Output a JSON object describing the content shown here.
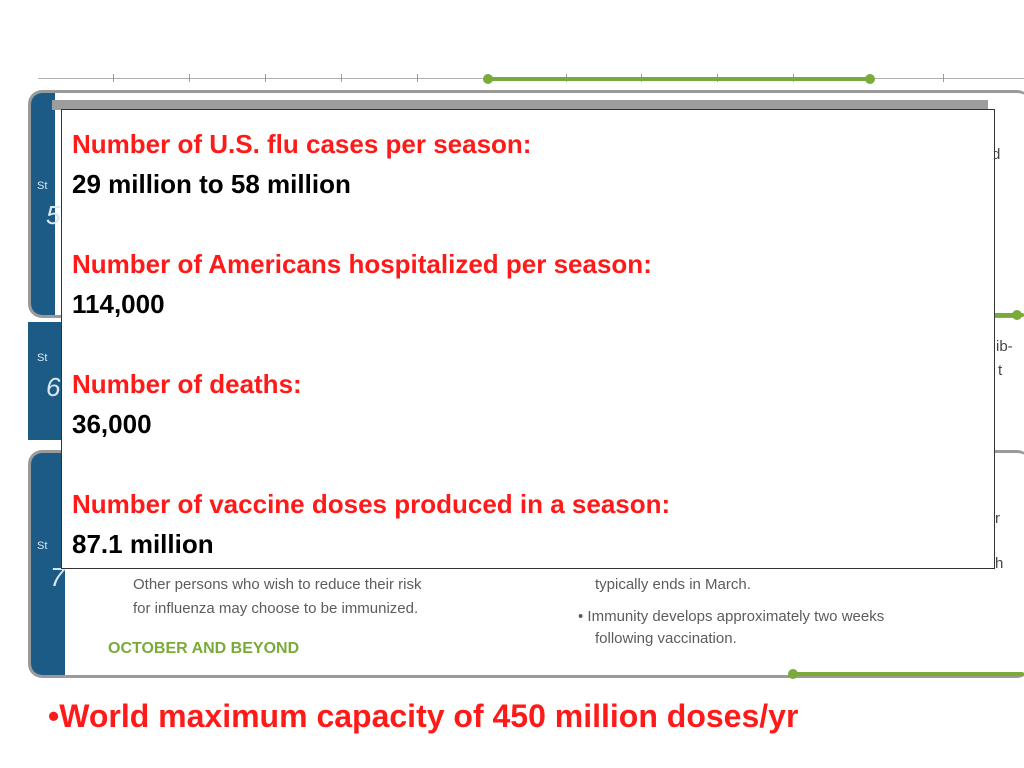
{
  "stats": [
    {
      "label": "Number of U.S. flu cases per season:",
      "value": "29 million to 58 million"
    },
    {
      "label": "Number of Americans hospitalized per season:",
      "value": "114,000"
    },
    {
      "label": "Number of deaths:",
      "value": "36,000"
    },
    {
      "label": "Number of vaccine doses produced in a season:",
      "value": "87.1 million"
    }
  ],
  "bullet": "•World maximum capacity of 450 million doses/yr",
  "background": {
    "step_label": "St",
    "panel1_number": "5",
    "panel2_number": "6",
    "panel3_number": "7",
    "edge_text_1": "d",
    "edge_text_2": "ib-",
    "edge_text_3": "t",
    "edge_text_4": "r",
    "edge_text_5": "h",
    "lines_left": [
      "Other persons who wish to reduce their risk",
      "for influenza may choose to be immunized."
    ],
    "lines_right": [
      "typically ends in March.",
      "• Immunity develops approximately two weeks",
      "following vaccination."
    ],
    "green_heading": "OCTOBER AND BEYOND"
  },
  "colors": {
    "accent_red": "#ff1a1a",
    "tab_blue": "#1c5b86",
    "green": "#7aab3a"
  }
}
